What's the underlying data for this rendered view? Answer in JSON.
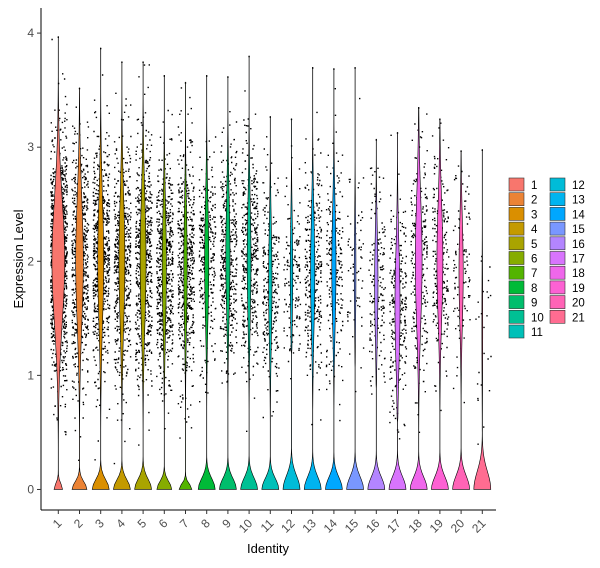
{
  "chart_data": {
    "type": "violin",
    "xlabel": "Identity",
    "ylabel": "Expression Level",
    "ylim": [
      -0.18,
      4.22
    ],
    "yticks": [
      0,
      1,
      2,
      3,
      4
    ],
    "categories": [
      "1",
      "2",
      "3",
      "4",
      "5",
      "6",
      "7",
      "8",
      "9",
      "10",
      "11",
      "12",
      "13",
      "14",
      "15",
      "16",
      "17",
      "18",
      "19",
      "20",
      "21"
    ],
    "colors": [
      "#F8766D",
      "#EB8335",
      "#DA8F00",
      "#C49A00",
      "#A9A400",
      "#86AC00",
      "#53B400",
      "#00BA38",
      "#00BE6C",
      "#00C094",
      "#00C0B8",
      "#00BCD8",
      "#00B4F0",
      "#00A7FF",
      "#7997FF",
      "#B385FF",
      "#D874FD",
      "#EF67EB",
      "#FD61D3",
      "#FF63B6",
      "#FF6C91"
    ],
    "zero_peak_height": [
      0.17,
      0.22,
      0.28,
      0.28,
      0.3,
      0.23,
      0.16,
      0.32,
      0.32,
      0.33,
      0.32,
      0.4,
      0.37,
      0.35,
      0.37,
      0.36,
      0.37,
      0.36,
      0.37,
      0.4,
      0.53
    ],
    "zero_peak_halfwidth": [
      0.2,
      0.35,
      0.4,
      0.4,
      0.4,
      0.35,
      0.3,
      0.4,
      0.4,
      0.4,
      0.4,
      0.4,
      0.4,
      0.4,
      0.4,
      0.4,
      0.4,
      0.4,
      0.4,
      0.4,
      0.4
    ],
    "body_center": [
      2.0,
      2.0,
      2.0,
      2.0,
      2.0,
      1.95,
      1.95,
      2.0,
      2.05,
      2.0,
      1.8,
      1.9,
      1.9,
      1.95,
      1.9,
      1.8,
      1.6,
      2.0,
      2.0,
      1.9,
      1.4
    ],
    "body_sd": [
      0.55,
      0.55,
      0.55,
      0.55,
      0.55,
      0.52,
      0.52,
      0.5,
      0.5,
      0.52,
      0.5,
      0.45,
      0.5,
      0.5,
      0.45,
      0.45,
      0.5,
      0.55,
      0.5,
      0.45,
      0.5
    ],
    "body_halfwidth": [
      0.3,
      0.18,
      0.14,
      0.14,
      0.14,
      0.1,
      0.08,
      0.1,
      0.1,
      0.09,
      0.08,
      0.06,
      0.1,
      0.1,
      0.04,
      0.08,
      0.12,
      0.16,
      0.14,
      0.1,
      0.02
    ],
    "body_min": [
      0.1,
      0.1,
      0.15,
      0.15,
      0.15,
      0.3,
      0.5,
      0.5,
      0.4,
      0.5,
      0.6,
      1.2,
      0.7,
      0.7,
      1.1,
      0.9,
      0.6,
      0.5,
      0.4,
      0.7,
      0.5
    ],
    "max_value": [
      3.97,
      3.52,
      3.87,
      3.75,
      3.75,
      3.63,
      3.57,
      3.63,
      3.62,
      3.8,
      3.27,
      3.25,
      3.7,
      3.69,
      3.7,
      3.07,
      3.13,
      3.35,
      3.25,
      2.97,
      2.98
    ],
    "point_count": [
      1100,
      550,
      600,
      550,
      600,
      550,
      500,
      280,
      420,
      420,
      260,
      150,
      300,
      220,
      70,
      170,
      280,
      260,
      240,
      120,
      25
    ],
    "legend": {
      "position": "right",
      "columns": [
        [
          "1",
          "2",
          "3",
          "4",
          "5",
          "6",
          "7",
          "8",
          "9",
          "10",
          "11"
        ],
        [
          "12",
          "13",
          "14",
          "15",
          "16",
          "17",
          "18",
          "19",
          "20",
          "21"
        ]
      ]
    },
    "grid": false
  }
}
